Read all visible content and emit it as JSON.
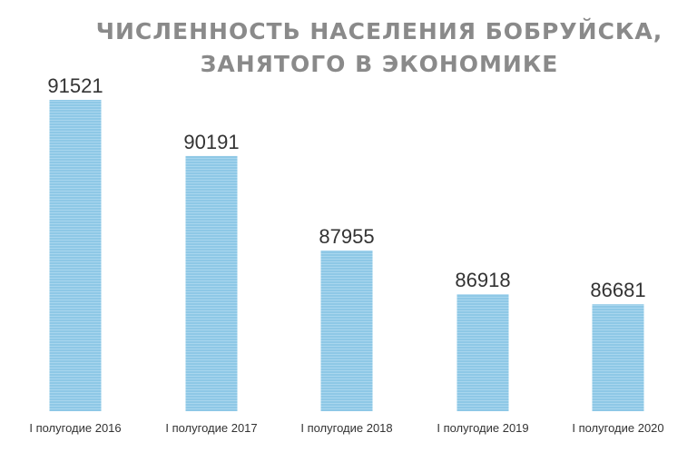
{
  "chart_data": {
    "type": "bar",
    "title_lines": [
      "ЧИСЛЕННОСТЬ НАСЕЛЕНИЯ БОБРУЙСКА,",
      "ЗАНЯТОГО В ЭКОНОМИКЕ"
    ],
    "categories": [
      "I полугодие 2016",
      "I полугодие 2017",
      "I полугодие 2018",
      "I полугодие 2019",
      "I полугодие 2020"
    ],
    "values": [
      91521,
      90191,
      87955,
      86918,
      86681
    ],
    "data_labels": [
      "91521",
      "90191",
      "87955",
      "86918",
      "86681"
    ],
    "xlabel": "",
    "ylabel": "",
    "grid": false,
    "legend": "none",
    "bar_color": "#8ec8e6",
    "bar_stripe_color": "#a9d6ee",
    "title_color": "#8a8a8a"
  }
}
